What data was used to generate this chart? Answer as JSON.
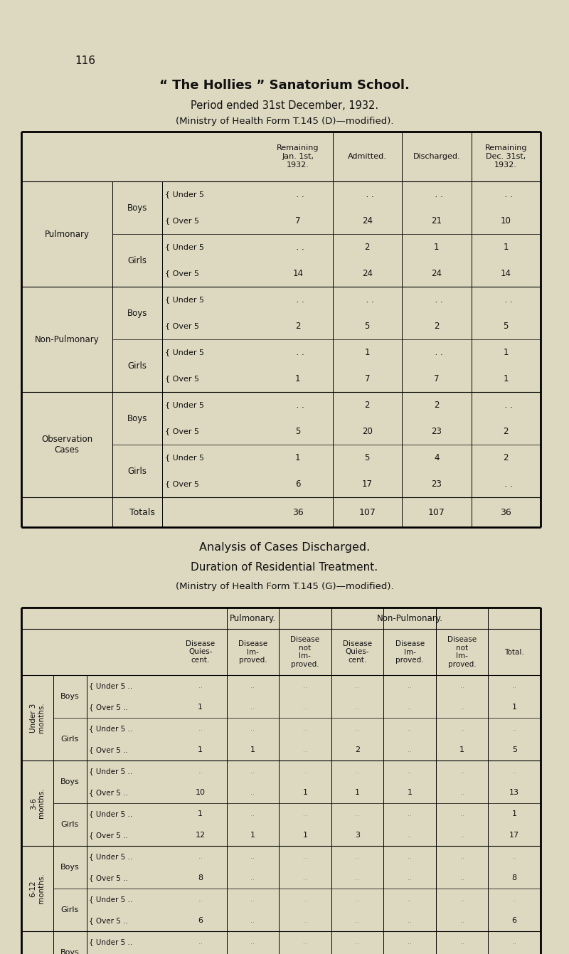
{
  "bg_color": "#ddd8c0",
  "page_num": "116",
  "title1": "“ The Hollies ” Sanatorium School.",
  "title2": "Period ended 31st December, 1932.",
  "title3": "(Ministry of Health Form T.145 (D)—modified).",
  "title4": "Analysis of Cases Discharged.",
  "title5": "Duration of Residential Treatment.",
  "title6": "(Ministry of Health Form T.145 (G)—modified).",
  "t1_headers": [
    "Remaining\nJan. 1st,\n1932.",
    "Admitted.",
    "Discharged.",
    "Remaining\nDec. 31st,\n1932."
  ],
  "t2_sub_headers": [
    "Disease\nQuies-\ncent.",
    "Disease\nIm-\nproved.",
    "Disease\nnot\nIm-\nproved.",
    "Disease\nQuies-\ncent.",
    "Disease\nIm-\nproved.",
    "Disease\nnot\nIm-\nproved.",
    "Total."
  ]
}
